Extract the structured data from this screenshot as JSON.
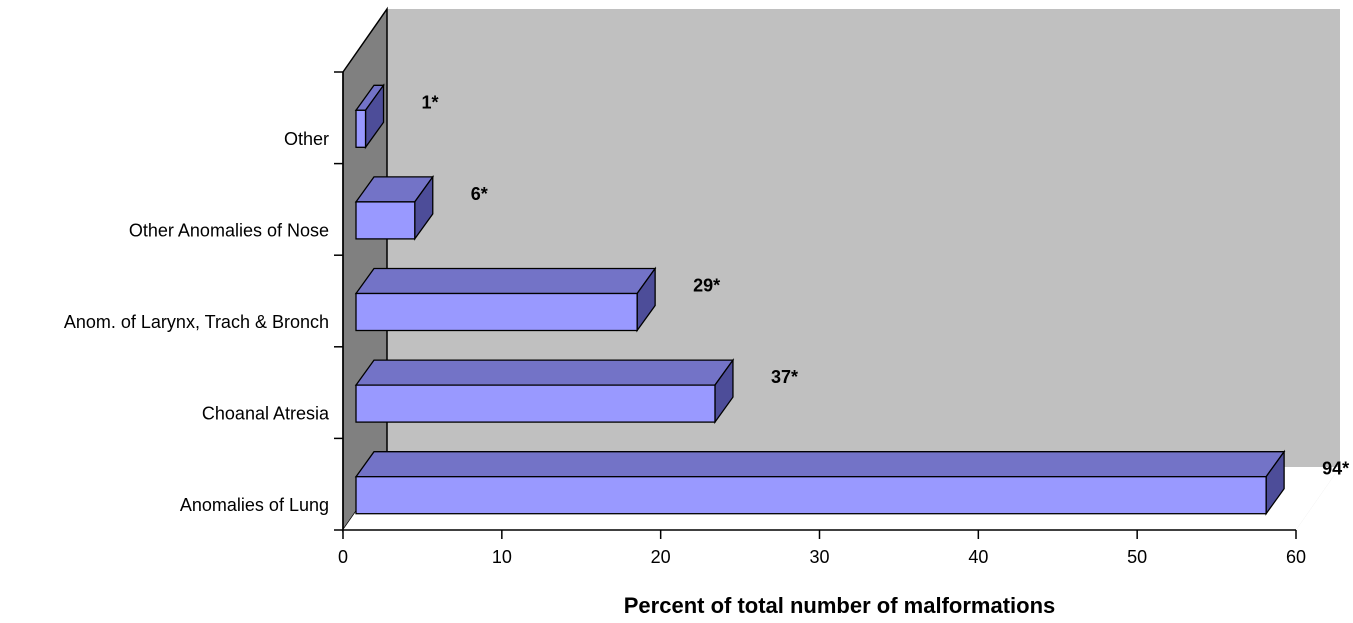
{
  "chart_data": {
    "type": "bar",
    "orientation": "horizontal",
    "three_d": true,
    "title": "",
    "xlabel": "Percent of total number of malformations",
    "ylabel": "",
    "xlim": [
      0,
      60
    ],
    "x_ticks": [
      "0",
      "10",
      "20",
      "30",
      "40",
      "50",
      "60"
    ],
    "grid": false,
    "legend": "none",
    "categories": [
      "Anomalies of Lung",
      "Choanal Atresia",
      "Anom. of Larynx, Trach & Bronch",
      "Other Anomalies of Nose",
      "Other"
    ],
    "values": [
      57.3,
      22.6,
      17.7,
      3.7,
      0.6
    ],
    "data_labels": [
      "94*",
      "37*",
      "29*",
      "6*",
      "1*"
    ],
    "colors": {
      "bar_front": "#9999ff",
      "bar_top": "#7373c7",
      "bar_side": "#4d4d99",
      "back_wall": "#c0c0c0",
      "side_wall": "#808080",
      "axis": "#000000"
    }
  }
}
